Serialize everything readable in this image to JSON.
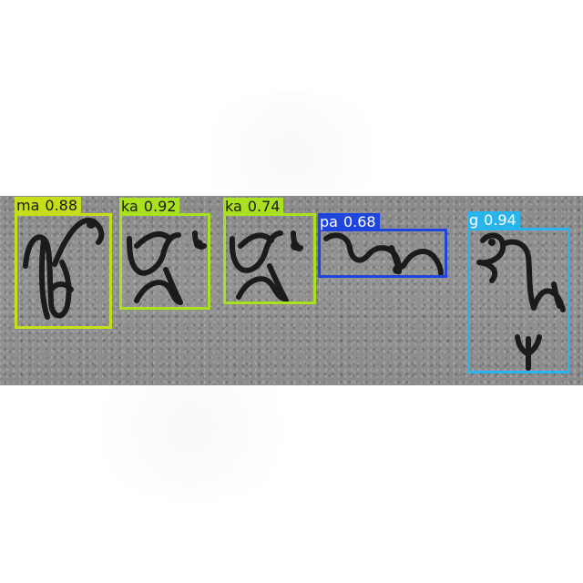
{
  "detections": [
    {
      "label": "ma",
      "confidence": "0.88",
      "color": "#c6dd1b",
      "text_color": "#1a1a1a"
    },
    {
      "label": "ka",
      "confidence": "0.92",
      "color": "#a9e020",
      "text_color": "#1a1a1a"
    },
    {
      "label": "ka",
      "confidence": "0.74",
      "color": "#a9e020",
      "text_color": "#1a1a1a"
    },
    {
      "label": "pa",
      "confidence": "0.68",
      "color": "#1f45e0",
      "text_color": "#ffffff"
    },
    {
      "label": "g",
      "confidence": "0.94",
      "color": "#29b4ee",
      "text_color": "#ffffff"
    }
  ],
  "colors": {
    "background": "#ffffff",
    "paper": "#8e8e8e",
    "ink": "#1b1b1b"
  }
}
